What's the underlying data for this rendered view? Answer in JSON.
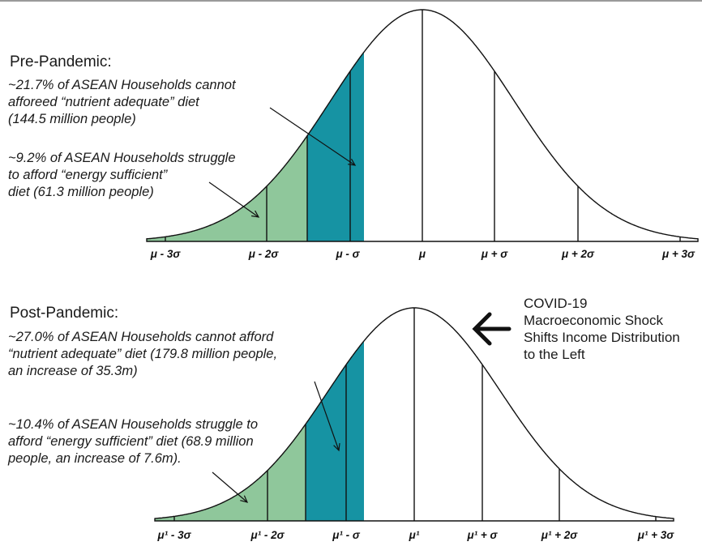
{
  "colors": {
    "green": "#8fc79b",
    "teal": "#1693a3",
    "line": "#111111"
  },
  "top": {
    "heading": "Pre-Pandemic:",
    "note1": [
      "~21.7% of ASEAN Households cannot",
      "afforeed  “nutrient adequate” diet",
      "(144.5 million people)"
    ],
    "note2": [
      "~9.2% of ASEAN Households struggle",
      "to afford “energy sufficient”",
      "diet (61.3 million people)"
    ],
    "ticks": [
      "μ - 3σ",
      "μ - 2σ",
      "μ - σ",
      "μ",
      "μ + σ",
      "μ + 2σ",
      "μ + 3σ"
    ]
  },
  "shock": {
    "arrow_icon": "left-arrow-icon",
    "lines": [
      "COVID-19",
      "Macroeconomic Shock",
      "Shifts Income Distribution",
      "to the Left"
    ]
  },
  "bottom": {
    "heading": "Post-Pandemic:",
    "note1": [
      "~27.0% of ASEAN Households cannot afford",
      "“nutrient adequate” diet (179.8 million people,",
      "an increase of 35.3m)"
    ],
    "note2": [
      "~10.4% of ASEAN Households struggle to",
      "afford “energy sufficient” diet (68.9 million",
      "people, an increase of 7.6m)."
    ],
    "ticks": [
      "μ¹ - 3σ",
      "μ¹ - 2σ",
      "μ¹ - σ",
      "μ¹",
      "μ¹ + σ",
      "μ¹ + 2σ",
      "μ¹ + 3σ"
    ]
  }
}
